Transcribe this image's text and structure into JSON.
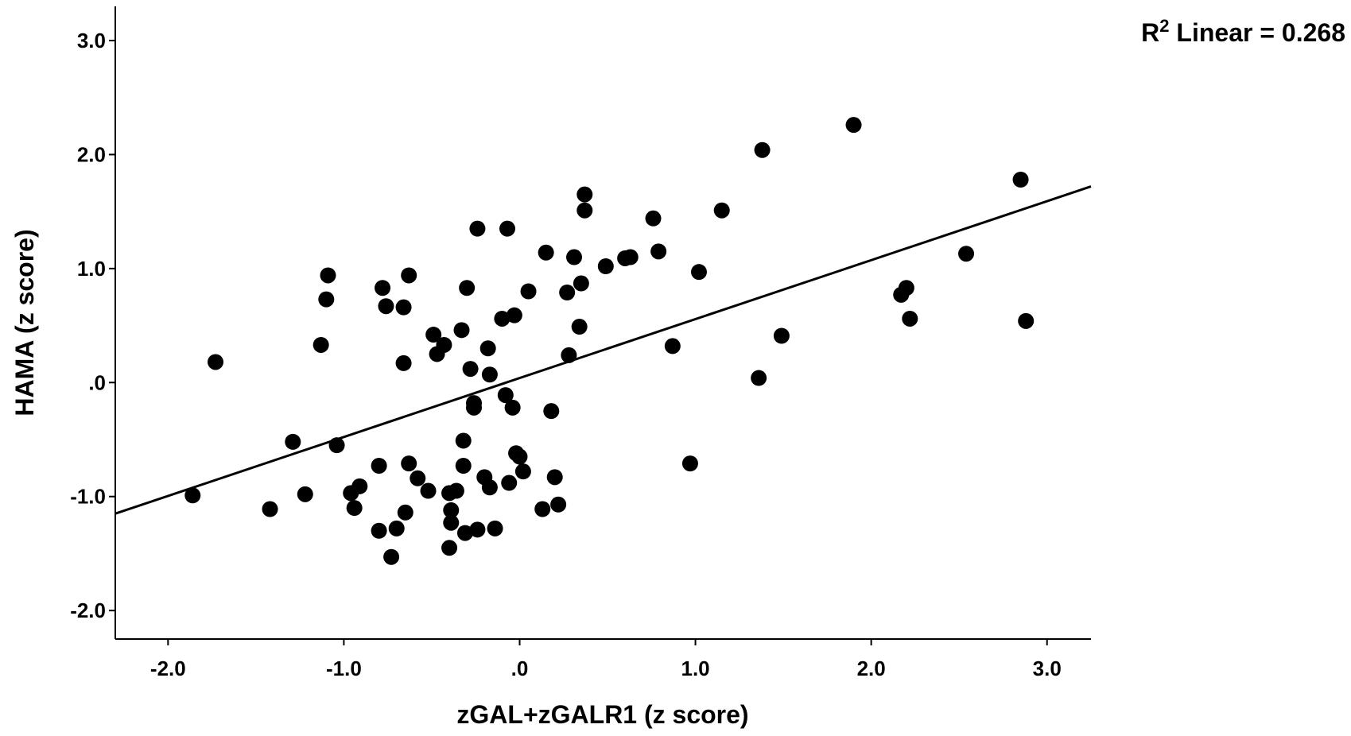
{
  "chart_data": {
    "type": "scatter",
    "xlabel": "zGAL+zGALR1 (z score)",
    "ylabel": "HAMA (z score)",
    "xlim": [
      -2.3,
      3.25
    ],
    "ylim": [
      -2.25,
      3.3
    ],
    "xticks": [
      -2.0,
      -1.0,
      0.0,
      1.0,
      2.0,
      3.0
    ],
    "xtick_labels": [
      "-2.0",
      "-1.0",
      ".0",
      "1.0",
      "2.0",
      "3.0"
    ],
    "yticks": [
      -2.0,
      -1.0,
      0.0,
      1.0,
      2.0,
      3.0
    ],
    "ytick_labels": [
      "-2.0",
      "-1.0",
      ".0",
      "1.0",
      "2.0",
      "3.0"
    ],
    "fit_line": {
      "label_prefix": "R",
      "label_sup": "2",
      "label_rest": " Linear = 0.268",
      "x": [
        -2.3,
        3.25
      ],
      "y": [
        -1.15,
        1.72
      ]
    },
    "grid": false,
    "points": [
      {
        "x": -1.86,
        "y": -0.99
      },
      {
        "x": -1.73,
        "y": 0.18
      },
      {
        "x": -1.42,
        "y": -1.11
      },
      {
        "x": -1.29,
        "y": -0.52
      },
      {
        "x": -1.22,
        "y": -0.98
      },
      {
        "x": -1.13,
        "y": 0.33
      },
      {
        "x": -1.1,
        "y": 0.73
      },
      {
        "x": -1.09,
        "y": 0.94
      },
      {
        "x": -1.04,
        "y": -0.55
      },
      {
        "x": -0.96,
        "y": -0.97
      },
      {
        "x": -0.94,
        "y": -1.1
      },
      {
        "x": -0.91,
        "y": -0.91
      },
      {
        "x": -0.8,
        "y": -0.73
      },
      {
        "x": -0.8,
        "y": -1.3
      },
      {
        "x": -0.78,
        "y": 0.83
      },
      {
        "x": -0.76,
        "y": 0.67
      },
      {
        "x": -0.73,
        "y": -1.53
      },
      {
        "x": -0.7,
        "y": -1.28
      },
      {
        "x": -0.66,
        "y": 0.66
      },
      {
        "x": -0.66,
        "y": 0.17
      },
      {
        "x": -0.65,
        "y": -1.14
      },
      {
        "x": -0.63,
        "y": 0.94
      },
      {
        "x": -0.63,
        "y": -0.71
      },
      {
        "x": -0.58,
        "y": -0.84
      },
      {
        "x": -0.52,
        "y": -0.95
      },
      {
        "x": -0.49,
        "y": 0.42
      },
      {
        "x": -0.47,
        "y": 0.25
      },
      {
        "x": -0.43,
        "y": 0.33
      },
      {
        "x": -0.4,
        "y": -0.97
      },
      {
        "x": -0.4,
        "y": -1.45
      },
      {
        "x": -0.39,
        "y": -1.12
      },
      {
        "x": -0.39,
        "y": -1.23
      },
      {
        "x": -0.36,
        "y": -0.95
      },
      {
        "x": -0.33,
        "y": 0.46
      },
      {
        "x": -0.32,
        "y": -0.51
      },
      {
        "x": -0.32,
        "y": -0.73
      },
      {
        "x": -0.31,
        "y": -1.32
      },
      {
        "x": -0.3,
        "y": 0.83
      },
      {
        "x": -0.28,
        "y": 0.12
      },
      {
        "x": -0.26,
        "y": -0.18
      },
      {
        "x": -0.26,
        "y": -0.22
      },
      {
        "x": -0.24,
        "y": 1.35
      },
      {
        "x": -0.24,
        "y": -1.29
      },
      {
        "x": -0.2,
        "y": -0.83
      },
      {
        "x": -0.18,
        "y": 0.3
      },
      {
        "x": -0.17,
        "y": 0.07
      },
      {
        "x": -0.17,
        "y": -0.92
      },
      {
        "x": -0.14,
        "y": -1.28
      },
      {
        "x": -0.1,
        "y": 0.56
      },
      {
        "x": -0.08,
        "y": -0.11
      },
      {
        "x": -0.07,
        "y": 1.35
      },
      {
        "x": -0.06,
        "y": -0.88
      },
      {
        "x": -0.04,
        "y": -0.22
      },
      {
        "x": -0.03,
        "y": 0.59
      },
      {
        "x": -0.02,
        "y": -0.62
      },
      {
        "x": 0.0,
        "y": -0.65
      },
      {
        "x": 0.02,
        "y": -0.78
      },
      {
        "x": 0.05,
        "y": 0.8
      },
      {
        "x": 0.13,
        "y": -1.11
      },
      {
        "x": 0.15,
        "y": 1.14
      },
      {
        "x": 0.18,
        "y": -0.25
      },
      {
        "x": 0.2,
        "y": -0.83
      },
      {
        "x": 0.22,
        "y": -1.07
      },
      {
        "x": 0.27,
        "y": 0.79
      },
      {
        "x": 0.28,
        "y": 0.24
      },
      {
        "x": 0.31,
        "y": 1.1
      },
      {
        "x": 0.34,
        "y": 0.49
      },
      {
        "x": 0.35,
        "y": 0.87
      },
      {
        "x": 0.37,
        "y": 1.65
      },
      {
        "x": 0.37,
        "y": 1.51
      },
      {
        "x": 0.49,
        "y": 1.02
      },
      {
        "x": 0.6,
        "y": 1.09
      },
      {
        "x": 0.63,
        "y": 1.1
      },
      {
        "x": 0.76,
        "y": 1.44
      },
      {
        "x": 0.79,
        "y": 1.15
      },
      {
        "x": 0.87,
        "y": 0.32
      },
      {
        "x": 0.97,
        "y": -0.71
      },
      {
        "x": 1.02,
        "y": 0.97
      },
      {
        "x": 1.15,
        "y": 1.51
      },
      {
        "x": 1.36,
        "y": 0.04
      },
      {
        "x": 1.38,
        "y": 2.04
      },
      {
        "x": 1.49,
        "y": 0.41
      },
      {
        "x": 1.9,
        "y": 2.26
      },
      {
        "x": 2.17,
        "y": 0.77
      },
      {
        "x": 2.2,
        "y": 0.83
      },
      {
        "x": 2.22,
        "y": 0.56
      },
      {
        "x": 2.54,
        "y": 1.13
      },
      {
        "x": 2.85,
        "y": 1.78
      },
      {
        "x": 2.88,
        "y": 0.54
      }
    ]
  }
}
